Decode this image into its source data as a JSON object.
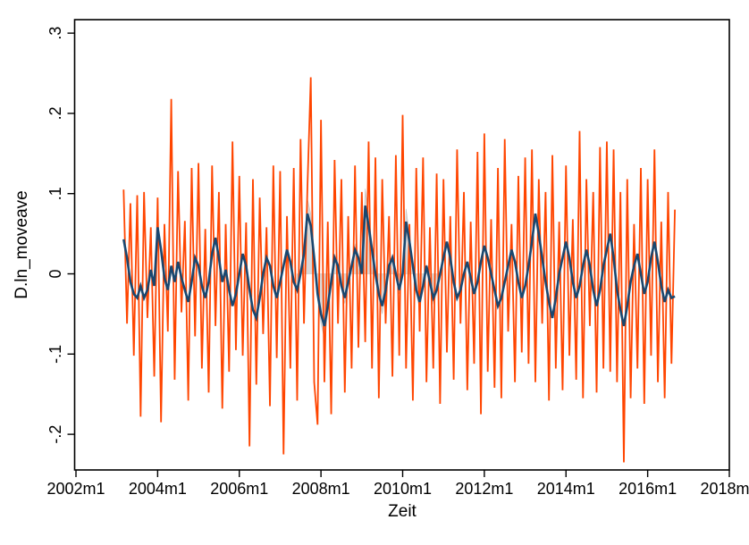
{
  "figure": {
    "background_color": "#FFFFFF",
    "frame_color": "#000000",
    "plot_area_fill": "#FFFFFF"
  },
  "chart_data": {
    "type": "line",
    "title": "",
    "xlabel": "Zeit",
    "ylabel": "D.ln_moveave",
    "x_unit": "monthly",
    "x_axis": {
      "label": "Zeit",
      "ticks": [
        "2002m1",
        "2004m1",
        "2006m1",
        "2008m1",
        "2010m1",
        "2012m1",
        "2014m1",
        "2016m1",
        "2018m1"
      ],
      "tick_months_since_2002m1": [
        0,
        24,
        48,
        72,
        96,
        120,
        144,
        168,
        192
      ],
      "range": [
        "2002m1",
        "2018m1"
      ]
    },
    "y_axis": {
      "label": "D.ln_moveave",
      "ticks": [
        ".3",
        ".2",
        ".1",
        "0",
        "-.1",
        "-.2"
      ],
      "tick_values": [
        0.3,
        0.2,
        0.1,
        0,
        -0.1,
        -0.2
      ],
      "range": [
        -0.245,
        0.317
      ],
      "grid": false
    },
    "legend": "none",
    "series_start": "2003m3",
    "series_start_month_offset": 14,
    "series": [
      {
        "name": "shaded-area-partial",
        "render": "area",
        "color": "#D9D9D9",
        "edge_color": "#C4C4C4",
        "points_idx_value": [
          [
            51,
            -0.025
          ],
          [
            52,
            0.0
          ],
          [
            53,
            0.031
          ],
          [
            54,
            0.094
          ],
          [
            55,
            0.075
          ],
          [
            56,
            0.025
          ],
          [
            57,
            -0.031
          ],
          [
            58,
            -0.062
          ],
          [
            59,
            -0.081
          ],
          [
            60,
            -0.05
          ],
          [
            61,
            -0.012
          ],
          [
            62,
            0.025
          ],
          [
            63,
            0.012
          ],
          [
            64,
            -0.019
          ],
          [
            65,
            -0.037
          ],
          [
            66,
            -0.012
          ],
          [
            67,
            0.012
          ],
          [
            68,
            0.037
          ],
          [
            69,
            0.025
          ],
          [
            70,
            0.0
          ],
          [
            71,
            0.106
          ],
          [
            72,
            0.075
          ],
          [
            73,
            0.037
          ],
          [
            74,
            0.0
          ],
          [
            75,
            -0.031
          ],
          [
            76,
            -0.05
          ],
          [
            77,
            -0.025
          ],
          [
            78,
            0.012
          ],
          [
            79,
            0.025
          ],
          [
            80,
            0.0
          ],
          [
            81,
            -0.025
          ],
          [
            82,
            0.0
          ],
          [
            83,
            0.081
          ],
          [
            84,
            0.05
          ],
          [
            85,
            0.012
          ],
          [
            86,
            -0.025
          ],
          [
            87,
            -0.044
          ],
          [
            88,
            -0.019
          ],
          [
            89,
            0.012
          ],
          [
            90,
            -0.012
          ],
          [
            91,
            -0.037
          ],
          [
            92,
            -0.025
          ],
          [
            93,
            0.0
          ]
        ]
      },
      {
        "name": "monthly-difference-volatile",
        "render": "line",
        "color": "#FF4500",
        "line_width": 1.8,
        "values": [
          0.105,
          -0.062,
          0.088,
          -0.102,
          0.098,
          -0.178,
          0.102,
          -0.055,
          0.058,
          -0.128,
          0.095,
          -0.185,
          0.062,
          -0.072,
          0.218,
          -0.132,
          0.128,
          -0.048,
          0.066,
          -0.158,
          0.132,
          -0.078,
          0.138,
          -0.118,
          0.056,
          -0.148,
          0.135,
          -0.065,
          0.102,
          -0.168,
          0.062,
          -0.122,
          0.165,
          -0.095,
          0.122,
          -0.102,
          0.064,
          -0.215,
          0.118,
          -0.138,
          0.095,
          -0.075,
          0.058,
          -0.165,
          0.135,
          -0.105,
          0.128,
          -0.225,
          0.072,
          -0.118,
          0.132,
          -0.158,
          0.168,
          -0.062,
          0.105,
          0.245,
          -0.135,
          -0.188,
          0.192,
          -0.135,
          0.065,
          -0.175,
          0.142,
          -0.062,
          0.118,
          -0.148,
          0.072,
          -0.118,
          0.135,
          -0.092,
          0.102,
          -0.085,
          0.165,
          -0.118,
          0.145,
          -0.155,
          0.118,
          -0.062,
          0.072,
          -0.128,
          0.148,
          -0.102,
          0.198,
          -0.118,
          0.062,
          -0.158,
          0.132,
          -0.072,
          0.145,
          -0.135,
          0.058,
          -0.118,
          0.125,
          -0.162,
          0.118,
          -0.098,
          0.072,
          -0.132,
          0.155,
          -0.062,
          0.102,
          -0.145,
          0.065,
          -0.112,
          0.152,
          -0.175,
          0.175,
          -0.122,
          0.068,
          -0.142,
          0.132,
          -0.155,
          0.168,
          -0.072,
          0.062,
          -0.135,
          0.122,
          -0.098,
          0.145,
          -0.112,
          0.155,
          -0.135,
          0.118,
          -0.062,
          0.102,
          -0.158,
          0.148,
          -0.118,
          0.065,
          -0.145,
          0.135,
          -0.102,
          0.068,
          -0.132,
          0.178,
          -0.155,
          0.118,
          -0.065,
          0.102,
          -0.148,
          0.158,
          -0.118,
          0.165,
          -0.122,
          0.155,
          -0.135,
          0.102,
          -0.235,
          0.118,
          -0.155,
          0.062,
          -0.118,
          0.132,
          -0.162,
          0.118,
          -0.102,
          0.155,
          -0.135,
          0.065,
          -0.155,
          0.102,
          -0.112,
          0.08
        ]
      },
      {
        "name": "moving-average-smoothed",
        "render": "line",
        "color": "#1A476F",
        "line_width": 2.6,
        "values": [
          0.043,
          0.02,
          -0.01,
          -0.025,
          -0.03,
          -0.015,
          -0.03,
          -0.02,
          0.005,
          -0.015,
          0.058,
          0.03,
          -0.005,
          -0.02,
          0.01,
          -0.01,
          0.015,
          -0.005,
          -0.02,
          -0.035,
          -0.01,
          0.02,
          0.01,
          -0.015,
          -0.03,
          -0.01,
          0.025,
          0.045,
          0.02,
          -0.01,
          0.005,
          -0.02,
          -0.04,
          -0.025,
          0.0,
          0.025,
          0.01,
          -0.02,
          -0.045,
          -0.055,
          -0.03,
          0.0,
          0.02,
          0.01,
          -0.015,
          -0.03,
          -0.01,
          0.01,
          0.03,
          0.015,
          -0.01,
          -0.02,
          0.0,
          0.025,
          0.075,
          0.06,
          0.02,
          -0.025,
          -0.05,
          -0.065,
          -0.04,
          -0.01,
          0.02,
          0.01,
          -0.015,
          -0.03,
          -0.01,
          0.01,
          0.03,
          0.02,
          0.0,
          0.085,
          0.06,
          0.03,
          0.0,
          -0.025,
          -0.04,
          -0.02,
          0.01,
          0.02,
          0.0,
          -0.02,
          0.0,
          0.065,
          0.04,
          0.01,
          -0.02,
          -0.035,
          -0.015,
          0.01,
          -0.01,
          -0.03,
          -0.02,
          0.0,
          0.02,
          0.04,
          0.02,
          -0.01,
          -0.03,
          -0.02,
          0.0,
          0.015,
          -0.005,
          -0.025,
          -0.01,
          0.015,
          0.035,
          0.02,
          0.0,
          -0.02,
          -0.04,
          -0.03,
          -0.01,
          0.01,
          0.03,
          0.015,
          -0.01,
          -0.03,
          -0.015,
          0.01,
          0.04,
          0.075,
          0.05,
          0.02,
          -0.01,
          -0.035,
          -0.055,
          -0.03,
          0.0,
          0.02,
          0.04,
          0.02,
          -0.01,
          -0.03,
          -0.015,
          0.01,
          0.03,
          0.01,
          -0.02,
          -0.04,
          -0.02,
          0.01,
          0.03,
          0.05,
          0.02,
          -0.02,
          -0.045,
          -0.065,
          -0.04,
          -0.01,
          0.01,
          0.025,
          0.0,
          -0.025,
          -0.01,
          0.02,
          0.04,
          0.015,
          -0.015,
          -0.035,
          -0.02,
          -0.03,
          -0.028
        ]
      }
    ]
  }
}
